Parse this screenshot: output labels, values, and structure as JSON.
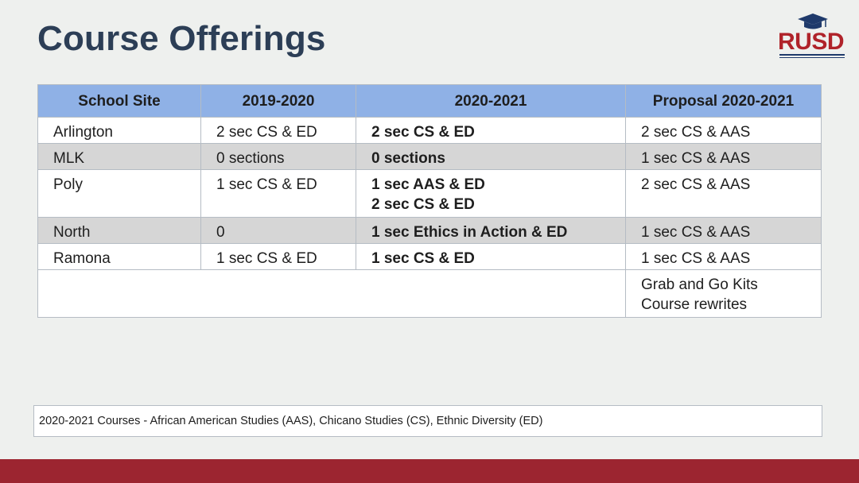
{
  "title": "Course Offerings",
  "logo": {
    "text": "RUSD",
    "icon": "graduation-cap-icon"
  },
  "table": {
    "headers": [
      "School Site",
      "2019-2020",
      "2020-2021",
      "Proposal  2020-2021"
    ],
    "rows": [
      {
        "site": "Arlington",
        "y2019": "2 sec CS & ED",
        "y2020": [
          "2 sec CS & ED"
        ],
        "proposal": [
          "2 sec CS & AAS"
        ]
      },
      {
        "site": "MLK",
        "y2019": "0 sections",
        "y2020": [
          "0 sections"
        ],
        "proposal": [
          "1 sec CS & AAS"
        ]
      },
      {
        "site": "Poly",
        "y2019": "1 sec CS & ED",
        "y2020": [
          "1 sec AAS & ED",
          "2 sec CS & ED"
        ],
        "proposal": [
          "2 sec CS & AAS"
        ]
      },
      {
        "site": "North",
        "y2019": "0",
        "y2020": [
          "1 sec Ethics in Action & ED"
        ],
        "proposal": [
          "1 sec CS & AAS"
        ]
      },
      {
        "site": "Ramona",
        "y2019": "1 sec CS & ED",
        "y2020": [
          "1 sec CS & ED"
        ],
        "proposal": [
          "1 sec CS & AAS"
        ]
      },
      {
        "site": "",
        "y2019": "",
        "y2020": [
          ""
        ],
        "proposal": [
          "Grab and Go Kits",
          "Course rewrites"
        ]
      }
    ]
  },
  "footnote": "2020-2021 Courses - African American Studies (AAS), Chicano Studies (CS), Ethnic Diversity (ED)",
  "colors": {
    "header": "#8fb1e6",
    "band": "#d6d6d6",
    "title": "#2c3e56",
    "brand_red": "#b0232a",
    "footer": "#9c2530"
  }
}
